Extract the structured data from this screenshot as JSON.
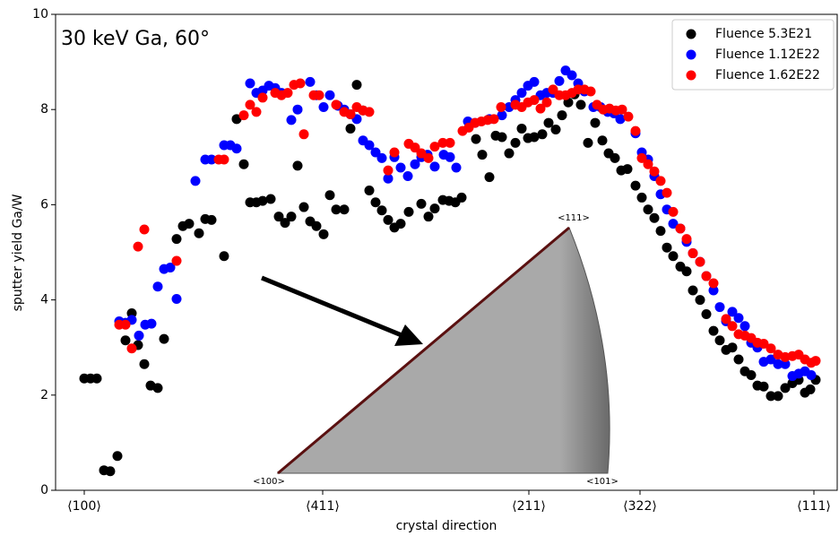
{
  "chart_data": {
    "type": "scatter",
    "annotation": "30 keV Ga, 60°",
    "xlabel": "crystal direction",
    "ylabel": "sputter yield Ga/W",
    "inset_labels": [
      "<111>",
      "<100>",
      "<101>"
    ],
    "xlim": [
      -32,
      840
    ],
    "ylim": [
      0,
      10
    ],
    "yticks": [
      0,
      2,
      4,
      6,
      8,
      10
    ],
    "xticks": [
      {
        "value": 0,
        "label": "⟨100⟩"
      },
      {
        "value": 266,
        "label": "⟨411⟩"
      },
      {
        "value": 496,
        "label": "⟨211⟩"
      },
      {
        "value": 620,
        "label": "⟨322⟩"
      },
      {
        "value": 814,
        "label": "⟨111⟩"
      }
    ],
    "legend": "upper right",
    "series": [
      {
        "name": "Fluence 5.3E21",
        "color": "#000000",
        "x": [
          0,
          7,
          14,
          22,
          29,
          37,
          46,
          53,
          60,
          67,
          74,
          82,
          89,
          103,
          110,
          117,
          128,
          135,
          142,
          156,
          170,
          178,
          185,
          192,
          199,
          208,
          217,
          224,
          231,
          238,
          245,
          252,
          259,
          267,
          274,
          281,
          290,
          297,
          304,
          311,
          318,
          325,
          332,
          339,
          346,
          353,
          362,
          376,
          384,
          391,
          400,
          407,
          414,
          421,
          437,
          444,
          452,
          459,
          466,
          474,
          481,
          488,
          495,
          502,
          511,
          518,
          526,
          533,
          540,
          547,
          554,
          562,
          570,
          578,
          585,
          592,
          599,
          606,
          615,
          622,
          629,
          636,
          643,
          650,
          657,
          665,
          672,
          679,
          687,
          694,
          702,
          709,
          716,
          723,
          730,
          737,
          744,
          751,
          758,
          766,
          774,
          782,
          790,
          797,
          804,
          810,
          816
        ],
        "values": [
          2.35,
          2.35,
          2.35,
          0.42,
          0.4,
          0.72,
          3.15,
          3.72,
          3.05,
          2.65,
          2.2,
          2.15,
          3.18,
          5.28,
          5.55,
          5.6,
          5.4,
          5.7,
          5.68,
          4.92,
          7.8,
          6.85,
          6.05,
          6.05,
          6.08,
          6.12,
          5.75,
          5.62,
          5.75,
          6.82,
          5.95,
          5.65,
          5.55,
          5.38,
          6.2,
          5.9,
          5.9,
          7.6,
          8.52,
          7.98,
          6.3,
          6.05,
          5.88,
          5.68,
          5.52,
          5.6,
          5.85,
          6.02,
          5.75,
          5.92,
          6.1,
          6.08,
          6.05,
          6.15,
          7.38,
          7.05,
          6.58,
          7.45,
          7.42,
          7.08,
          7.3,
          7.6,
          7.4,
          7.42,
          7.48,
          7.72,
          7.58,
          7.88,
          8.15,
          8.32,
          8.1,
          7.3,
          7.72,
          7.35,
          7.08,
          6.98,
          6.72,
          6.75,
          6.4,
          6.15,
          5.9,
          5.72,
          5.45,
          5.1,
          4.92,
          4.7,
          4.6,
          4.2,
          4.0,
          3.7,
          3.35,
          3.15,
          2.95,
          3.0,
          2.75,
          2.5,
          2.42,
          2.2,
          2.18,
          1.98,
          1.98,
          2.15,
          2.25,
          2.32,
          2.05,
          2.12,
          2.32
        ]
      },
      {
        "name": "Fluence 1.12E22",
        "color": "#0000ff",
        "x": [
          39,
          46,
          53,
          61,
          68,
          75,
          82,
          89,
          96,
          103,
          124,
          135,
          142,
          156,
          163,
          170,
          185,
          192,
          199,
          206,
          213,
          220,
          231,
          238,
          252,
          259,
          267,
          274,
          283,
          290,
          297,
          304,
          311,
          318,
          325,
          332,
          339,
          346,
          353,
          361,
          369,
          376,
          383,
          391,
          401,
          408,
          415,
          428,
          436,
          452,
          466,
          474,
          481,
          488,
          495,
          502,
          509,
          516,
          523,
          530,
          537,
          544,
          551,
          558,
          568,
          576,
          584,
          591,
          598,
          615,
          622,
          629,
          636,
          643,
          650,
          657,
          665,
          672,
          679,
          687,
          694,
          702,
          709,
          716,
          723,
          730,
          737,
          744,
          751,
          758,
          766,
          774,
          782,
          790,
          797,
          804,
          811
        ],
        "values": [
          3.55,
          3.52,
          3.58,
          3.25,
          3.48,
          3.5,
          4.28,
          4.65,
          4.68,
          4.02,
          6.5,
          6.95,
          6.95,
          7.25,
          7.25,
          7.18,
          8.55,
          8.35,
          8.4,
          8.5,
          8.45,
          8.35,
          7.78,
          8.0,
          8.58,
          8.3,
          8.05,
          8.3,
          8.08,
          8.0,
          7.9,
          7.8,
          7.35,
          7.25,
          7.1,
          6.98,
          6.55,
          7.0,
          6.78,
          6.6,
          6.85,
          7.0,
          7.05,
          6.8,
          7.05,
          7.0,
          6.78,
          7.75,
          7.72,
          7.8,
          7.88,
          8.05,
          8.2,
          8.35,
          8.5,
          8.58,
          8.3,
          8.35,
          8.35,
          8.6,
          8.82,
          8.72,
          8.55,
          8.38,
          8.05,
          8.05,
          7.95,
          7.92,
          7.8,
          7.5,
          7.1,
          6.95,
          6.6,
          6.22,
          5.9,
          5.6,
          5.5,
          5.22,
          4.98,
          4.8,
          4.5,
          4.2,
          3.85,
          3.55,
          3.75,
          3.62,
          3.45,
          3.1,
          3.0,
          2.7,
          2.75,
          2.65,
          2.65,
          2.4,
          2.45,
          2.5,
          2.42
        ]
      },
      {
        "name": "Fluence 1.62E22",
        "color": "#ff0000",
        "x": [
          39,
          46,
          53,
          60,
          67,
          103,
          150,
          156,
          178,
          185,
          192,
          199,
          213,
          220,
          227,
          234,
          241,
          245,
          256,
          262,
          281,
          290,
          297,
          304,
          311,
          318,
          339,
          346,
          362,
          369,
          376,
          384,
          391,
          400,
          408,
          422,
          429,
          436,
          443,
          450,
          457,
          465,
          481,
          488,
          495,
          502,
          509,
          516,
          523,
          530,
          537,
          544,
          551,
          558,
          565,
          572,
          579,
          586,
          593,
          600,
          607,
          615,
          622,
          629,
          636,
          643,
          650,
          657,
          665,
          672,
          679,
          687,
          694,
          702,
          716,
          723,
          730,
          737,
          744,
          751,
          758,
          766,
          774,
          782,
          790,
          797,
          804,
          811,
          816
        ],
        "values": [
          3.48,
          3.48,
          2.98,
          5.12,
          5.48,
          4.82,
          6.95,
          6.95,
          7.88,
          8.1,
          7.95,
          8.25,
          8.35,
          8.3,
          8.35,
          8.52,
          8.55,
          7.48,
          8.3,
          8.3,
          8.1,
          7.95,
          7.9,
          8.05,
          7.98,
          7.95,
          6.72,
          7.1,
          7.28,
          7.2,
          7.08,
          6.98,
          7.22,
          7.3,
          7.3,
          7.55,
          7.62,
          7.72,
          7.75,
          7.78,
          7.8,
          8.05,
          8.1,
          8.05,
          8.15,
          8.2,
          8.02,
          8.15,
          8.42,
          8.3,
          8.3,
          8.35,
          8.42,
          8.42,
          8.38,
          8.1,
          8.0,
          8.02,
          7.98,
          8.0,
          7.85,
          7.55,
          6.98,
          6.85,
          6.7,
          6.5,
          6.25,
          5.85,
          5.5,
          5.28,
          4.98,
          4.8,
          4.5,
          4.35,
          3.6,
          3.45,
          3.28,
          3.25,
          3.2,
          3.1,
          3.08,
          2.98,
          2.85,
          2.8,
          2.82,
          2.85,
          2.75,
          2.68,
          2.72
        ]
      }
    ]
  }
}
